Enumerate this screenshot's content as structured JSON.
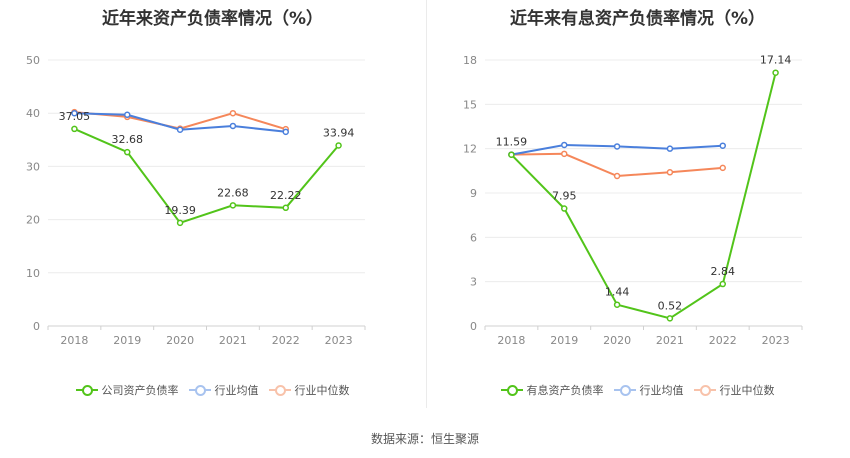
{
  "chart_data": [
    {
      "type": "line",
      "title": "近年来资产负债率情况（%）",
      "categories": [
        "2018",
        "2019",
        "2020",
        "2021",
        "2022",
        "2023"
      ],
      "ylim": [
        0,
        50
      ],
      "yticks": [
        0,
        10,
        20,
        30,
        40,
        50
      ],
      "series": [
        {
          "name": "公司资产负债率",
          "color": "#52c41a",
          "values": [
            37.05,
            32.68,
            19.39,
            22.68,
            22.22,
            33.94
          ],
          "labels": [
            "37.05",
            "32.68",
            "19.39",
            "22.68",
            "22.22",
            "33.94"
          ]
        },
        {
          "name": "行业均值",
          "color": "#4a7fdc",
          "values": [
            40.0,
            39.7,
            36.9,
            37.6,
            36.5,
            null
          ]
        },
        {
          "name": "行业中位数",
          "color": "#f5875a",
          "values": [
            40.2,
            39.3,
            37.1,
            40.0,
            37.0,
            null
          ]
        }
      ]
    },
    {
      "type": "line",
      "title": "近年来有息资产负债率情况（%）",
      "categories": [
        "2018",
        "2019",
        "2020",
        "2021",
        "2022",
        "2023"
      ],
      "ylim": [
        0,
        18
      ],
      "yticks": [
        0,
        3,
        6,
        9,
        12,
        15,
        18
      ],
      "series": [
        {
          "name": "有息资产负债率",
          "color": "#52c41a",
          "values": [
            11.59,
            7.95,
            1.44,
            0.52,
            2.84,
            17.14
          ],
          "labels": [
            "11.59",
            "7.95",
            "1.44",
            "0.52",
            "2.84",
            "17.14"
          ]
        },
        {
          "name": "行业均值",
          "color": "#4a7fdc",
          "values": [
            11.6,
            12.25,
            12.15,
            12.0,
            12.2,
            null
          ]
        },
        {
          "name": "行业中位数",
          "color": "#f5875a",
          "values": [
            11.6,
            11.65,
            10.15,
            10.4,
            10.7,
            null
          ]
        }
      ]
    }
  ],
  "source": "数据来源：恒生聚源"
}
